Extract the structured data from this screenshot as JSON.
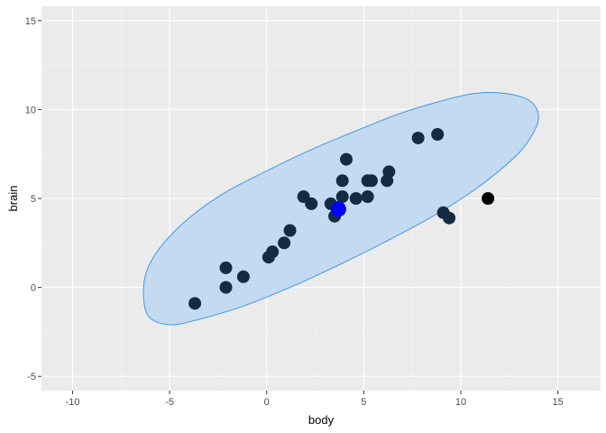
{
  "chart_data": {
    "type": "scatter",
    "xlabel": "body",
    "ylabel": "brain",
    "xlim": [
      -11.6,
      17.2
    ],
    "ylim": [
      -5.8,
      15.8
    ],
    "x_ticks": [
      -10,
      -5,
      0,
      5,
      10,
      15
    ],
    "y_ticks": [
      -5,
      0,
      5,
      10,
      15
    ],
    "x_tick_labels": [
      "-10",
      "-5",
      "0",
      "5",
      "10",
      "15"
    ],
    "y_tick_labels": [
      "-5",
      "0",
      "5",
      "10",
      "15"
    ],
    "grid": true,
    "colors": {
      "panel_background": "#ebebeb",
      "grid_major": "#ffffff",
      "grid_minor": "#f4f4f4",
      "ellipse_fill": "#c3daf1",
      "ellipse_stroke": "#3e97e8",
      "points": "#132b43",
      "outlier_point": "#000000",
      "center_point": "#0000ff"
    },
    "ellipse": {
      "center": [
        3.7,
        4.4
      ],
      "outline": [
        [
          -6.35,
          -0.2
        ],
        [
          -6.1,
          1.15
        ],
        [
          -5.3,
          2.5
        ],
        [
          -4.0,
          3.9
        ],
        [
          -2.2,
          5.3
        ],
        [
          0.0,
          6.55
        ],
        [
          2.3,
          7.75
        ],
        [
          4.6,
          8.8
        ],
        [
          6.8,
          9.75
        ],
        [
          8.9,
          10.45
        ],
        [
          10.7,
          10.9
        ],
        [
          12.3,
          10.9
        ],
        [
          13.6,
          10.45
        ],
        [
          14.0,
          9.45
        ],
        [
          13.4,
          8.1
        ],
        [
          12.4,
          6.95
        ],
        [
          10.6,
          5.4
        ],
        [
          8.4,
          3.9
        ],
        [
          6.0,
          2.5
        ],
        [
          3.6,
          1.2
        ],
        [
          1.2,
          0.0
        ],
        [
          -1.2,
          -1.05
        ],
        [
          -3.5,
          -1.8
        ],
        [
          -5.0,
          -2.1
        ],
        [
          -6.1,
          -1.6
        ]
      ]
    },
    "series": [
      {
        "values": [
          [
            -3.7,
            -0.9
          ],
          [
            -2.1,
            1.1
          ],
          [
            -2.1,
            0.0
          ],
          [
            -1.2,
            0.6
          ],
          [
            0.1,
            1.7
          ],
          [
            0.3,
            2.0
          ],
          [
            0.9,
            2.5
          ],
          [
            1.2,
            3.2
          ],
          [
            1.9,
            5.1
          ],
          [
            2.3,
            4.7
          ],
          [
            3.3,
            4.7
          ],
          [
            3.5,
            4.0
          ],
          [
            3.7,
            4.5
          ],
          [
            3.9,
            5.1
          ],
          [
            3.9,
            6.0
          ],
          [
            4.1,
            7.2
          ],
          [
            4.6,
            5.0
          ],
          [
            5.2,
            6.0
          ],
          [
            5.2,
            5.1
          ],
          [
            5.4,
            6.0
          ],
          [
            6.2,
            6.0
          ],
          [
            6.3,
            6.5
          ],
          [
            7.8,
            8.4
          ],
          [
            8.8,
            8.6
          ],
          [
            9.1,
            4.2
          ],
          [
            9.4,
            3.9
          ]
        ]
      }
    ],
    "outliers": [
      [
        11.4,
        5.0
      ]
    ],
    "center_point": [
      3.7,
      4.4
    ]
  }
}
